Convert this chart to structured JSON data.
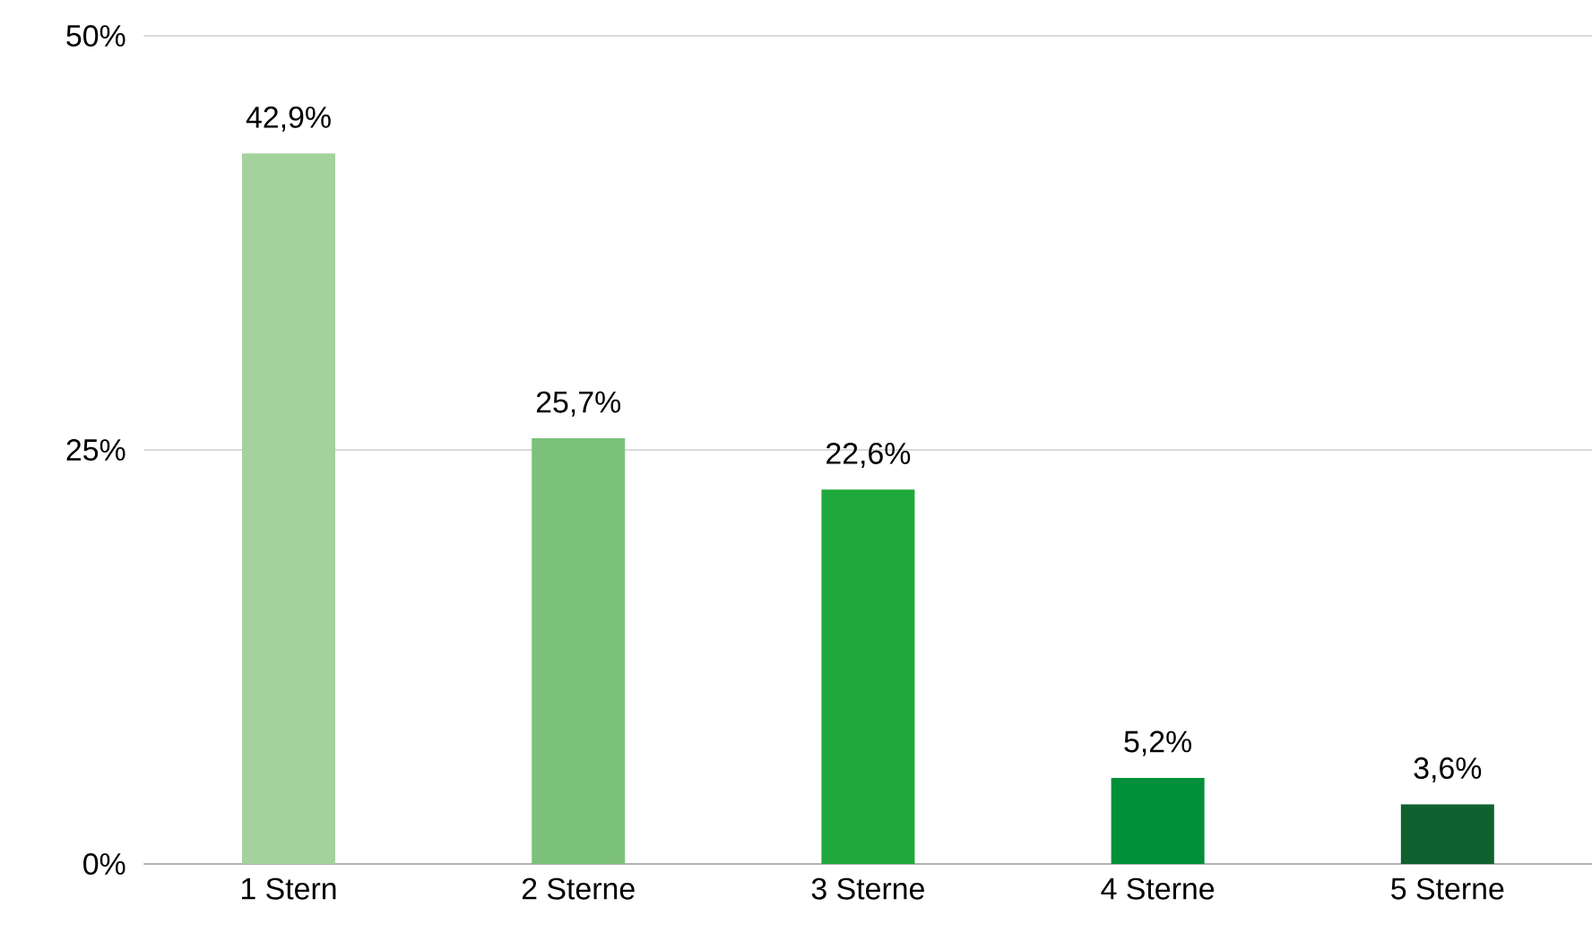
{
  "chart_data": {
    "type": "bar",
    "categories": [
      "1 Stern",
      "2 Sterne",
      "3 Sterne",
      "4 Sterne",
      "5 Sterne"
    ],
    "values": [
      42.9,
      25.7,
      22.6,
      5.2,
      3.6
    ],
    "value_labels": [
      "42,9%",
      "25,7%",
      "22,6%",
      "5,2%",
      "3,6%"
    ],
    "colors": [
      "#a3d29c",
      "#7cc17a",
      "#1fa83b",
      "#009039",
      "#0f612f"
    ],
    "ylim": [
      0,
      50
    ],
    "yticks": [
      {
        "value": 0,
        "label": "0%"
      },
      {
        "value": 25,
        "label": "25%"
      },
      {
        "value": 50,
        "label": "50%"
      }
    ],
    "grid": "y"
  }
}
